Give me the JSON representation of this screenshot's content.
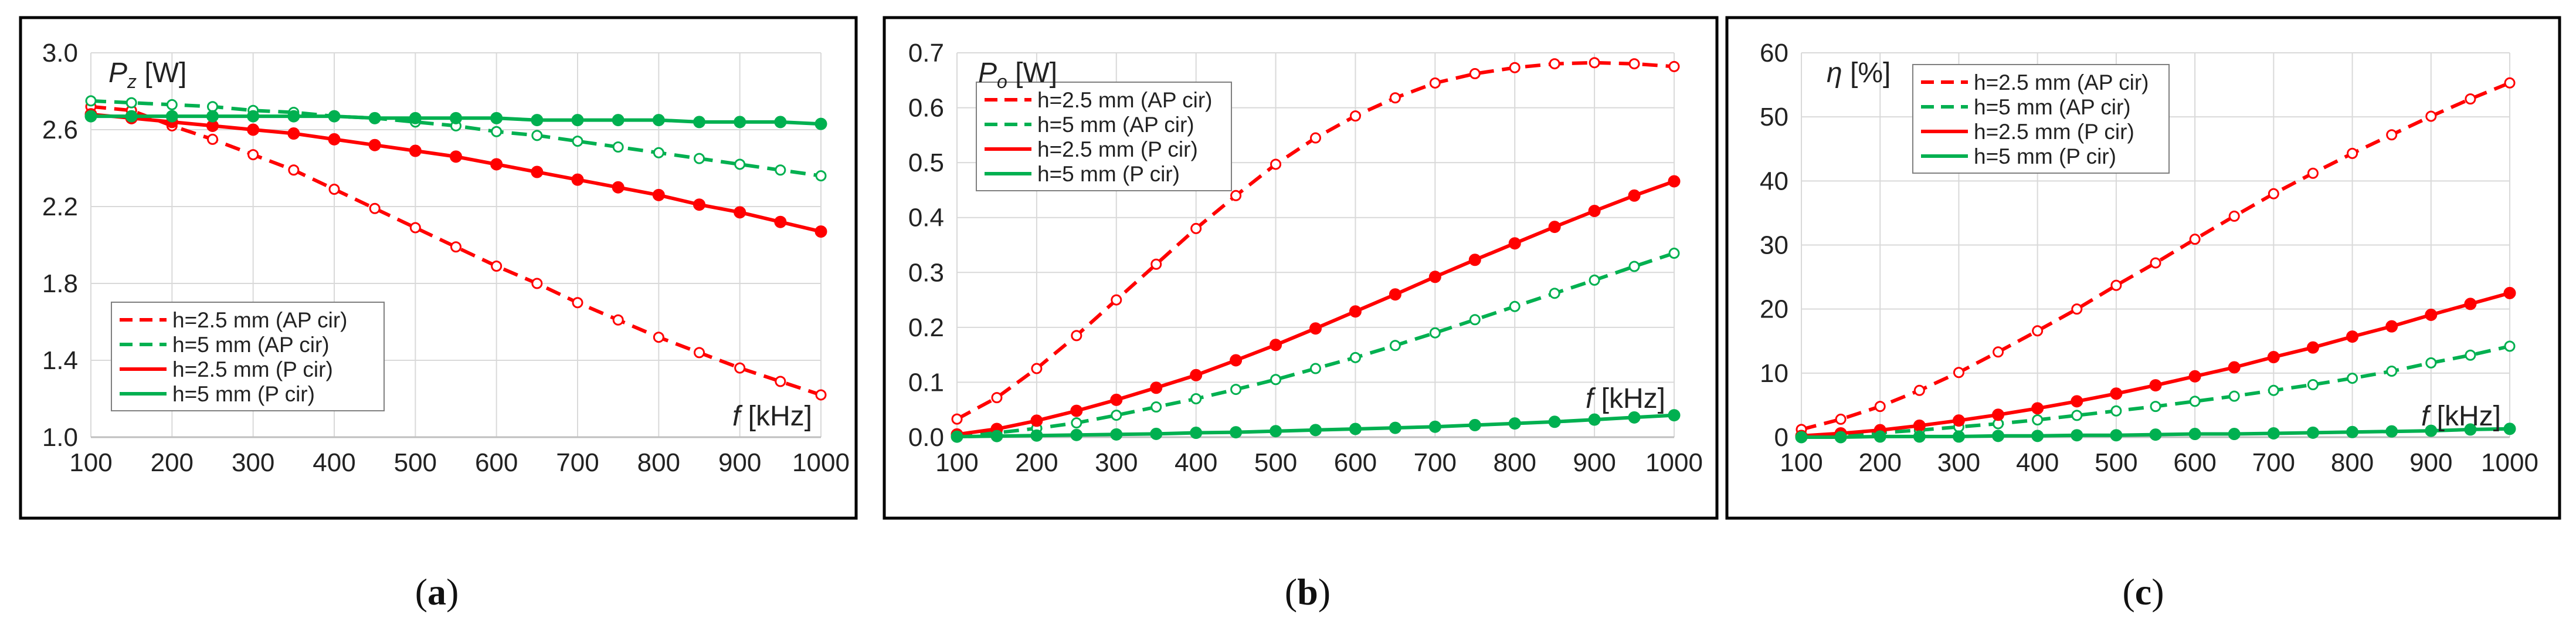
{
  "chart_data": [
    {
      "type": "line",
      "caption": "(a)",
      "ylabel_symbol": "P",
      "ylabel_sub": "z",
      "ylabel_unit": " [W]",
      "xlabel_symbol": "f",
      "xlabel_unit": " [kHz]",
      "xlim": [
        100,
        1000
      ],
      "ylim": [
        1.0,
        3.0
      ],
      "x_ticks": [
        "100",
        "200",
        "300",
        "400",
        "500",
        "600",
        "700",
        "800",
        "900",
        "1000"
      ],
      "y_ticks": [
        "1.0",
        "1.4",
        "1.8",
        "2.2",
        "2.6",
        "3.0"
      ],
      "grid": true,
      "legend_position": "bottom-left",
      "x": [
        100,
        150,
        200,
        250,
        300,
        350,
        400,
        450,
        500,
        550,
        600,
        650,
        700,
        750,
        800,
        850,
        900,
        950,
        1000
      ],
      "series": [
        {
          "name": "h=2.5 mm (AP cir)",
          "color": "#ff0000",
          "dash": "dashed",
          "marker": "open",
          "values": [
            2.72,
            2.7,
            2.62,
            2.55,
            2.47,
            2.39,
            2.29,
            2.19,
            2.09,
            1.99,
            1.89,
            1.8,
            1.7,
            1.61,
            1.52,
            1.44,
            1.36,
            1.29,
            1.22
          ]
        },
        {
          "name": "h=5 mm (AP cir)",
          "color": "#00b050",
          "dash": "dashed",
          "marker": "open",
          "values": [
            2.75,
            2.74,
            2.73,
            2.72,
            2.7,
            2.69,
            2.67,
            2.66,
            2.64,
            2.62,
            2.59,
            2.57,
            2.54,
            2.51,
            2.48,
            2.45,
            2.42,
            2.39,
            2.36
          ]
        },
        {
          "name": "h=2.5 mm (P cir)",
          "color": "#ff0000",
          "dash": "solid",
          "marker": "filled",
          "values": [
            2.68,
            2.66,
            2.64,
            2.62,
            2.6,
            2.58,
            2.55,
            2.52,
            2.49,
            2.46,
            2.42,
            2.38,
            2.34,
            2.3,
            2.26,
            2.21,
            2.17,
            2.12,
            2.07
          ]
        },
        {
          "name": "h=5 mm (P cir)",
          "color": "#00b050",
          "dash": "solid",
          "marker": "filled",
          "values": [
            2.67,
            2.67,
            2.67,
            2.67,
            2.67,
            2.67,
            2.67,
            2.66,
            2.66,
            2.66,
            2.66,
            2.65,
            2.65,
            2.65,
            2.65,
            2.64,
            2.64,
            2.64,
            2.63
          ]
        }
      ]
    },
    {
      "type": "line",
      "caption": "(b)",
      "ylabel_symbol": "P",
      "ylabel_sub": "o",
      "ylabel_unit": " [W]",
      "xlabel_symbol": "f",
      "xlabel_unit": " [kHz]",
      "xlim": [
        100,
        1000
      ],
      "ylim": [
        0.0,
        0.7
      ],
      "x_ticks": [
        "100",
        "200",
        "300",
        "400",
        "500",
        "600",
        "700",
        "800",
        "900",
        "1000"
      ],
      "y_ticks": [
        "0.0",
        "0.1",
        "0.2",
        "0.3",
        "0.4",
        "0.5",
        "0.6",
        "0.7"
      ],
      "grid": true,
      "legend_position": "top-left",
      "x": [
        100,
        150,
        200,
        250,
        300,
        350,
        400,
        450,
        500,
        550,
        600,
        650,
        700,
        750,
        800,
        850,
        900,
        950,
        1000
      ],
      "series": [
        {
          "name": "h=2.5 mm (AP cir)",
          "color": "#ff0000",
          "dash": "dashed",
          "marker": "open",
          "values": [
            0.033,
            0.072,
            0.125,
            0.185,
            0.25,
            0.315,
            0.38,
            0.44,
            0.497,
            0.545,
            0.585,
            0.618,
            0.645,
            0.662,
            0.673,
            0.68,
            0.682,
            0.68,
            0.675
          ]
        },
        {
          "name": "h=5 mm (AP cir)",
          "color": "#00b050",
          "dash": "dashed",
          "marker": "open",
          "values": [
            0.003,
            0.008,
            0.016,
            0.026,
            0.04,
            0.055,
            0.07,
            0.087,
            0.105,
            0.125,
            0.145,
            0.167,
            0.19,
            0.214,
            0.238,
            0.262,
            0.286,
            0.311,
            0.335
          ]
        },
        {
          "name": "h=2.5 mm (P cir)",
          "color": "#ff0000",
          "dash": "solid",
          "marker": "filled",
          "values": [
            0.005,
            0.015,
            0.03,
            0.048,
            0.068,
            0.09,
            0.113,
            0.14,
            0.168,
            0.198,
            0.229,
            0.26,
            0.292,
            0.323,
            0.353,
            0.383,
            0.412,
            0.44,
            0.466
          ]
        },
        {
          "name": "h=5 mm (P cir)",
          "color": "#00b050",
          "dash": "solid",
          "marker": "filled",
          "values": [
            0.001,
            0.002,
            0.003,
            0.004,
            0.005,
            0.006,
            0.008,
            0.009,
            0.011,
            0.013,
            0.015,
            0.017,
            0.019,
            0.022,
            0.025,
            0.028,
            0.032,
            0.036,
            0.04
          ]
        }
      ]
    },
    {
      "type": "line",
      "caption": "(c)",
      "ylabel_symbol": "η",
      "ylabel_sub": "",
      "ylabel_unit": " [%]",
      "xlabel_symbol": "f",
      "xlabel_unit": " [kHz]",
      "xlim": [
        100,
        1000
      ],
      "ylim": [
        0,
        60
      ],
      "x_ticks": [
        "100",
        "200",
        "300",
        "400",
        "500",
        "600",
        "700",
        "800",
        "900",
        "1000"
      ],
      "y_ticks": [
        "0",
        "10",
        "20",
        "30",
        "40",
        "50",
        "60"
      ],
      "grid": true,
      "legend_position": "top-left",
      "x": [
        100,
        150,
        200,
        250,
        300,
        350,
        400,
        450,
        500,
        550,
        600,
        650,
        700,
        750,
        800,
        850,
        900,
        950,
        1000
      ],
      "series": [
        {
          "name": "h=2.5 mm (AP cir)",
          "color": "#ff0000",
          "dash": "dashed",
          "marker": "open",
          "values": [
            1.2,
            2.8,
            4.8,
            7.3,
            10.1,
            13.3,
            16.6,
            20.0,
            23.7,
            27.2,
            30.9,
            34.5,
            38.0,
            41.2,
            44.3,
            47.2,
            50.1,
            52.8,
            55.3
          ]
        },
        {
          "name": "h=5 mm (AP cir)",
          "color": "#00b050",
          "dash": "dashed",
          "marker": "open",
          "values": [
            0.1,
            0.4,
            0.7,
            1.1,
            1.6,
            2.1,
            2.7,
            3.4,
            4.1,
            4.8,
            5.6,
            6.4,
            7.3,
            8.2,
            9.2,
            10.3,
            11.6,
            12.8,
            14.2
          ]
        },
        {
          "name": "h=2.5 mm (P cir)",
          "color": "#ff0000",
          "dash": "solid",
          "marker": "filled",
          "values": [
            0.2,
            0.6,
            1.1,
            1.8,
            2.6,
            3.5,
            4.5,
            5.6,
            6.8,
            8.1,
            9.5,
            10.9,
            12.5,
            14.0,
            15.7,
            17.3,
            19.1,
            20.8,
            22.5
          ]
        },
        {
          "name": "h=5 mm (P cir)",
          "color": "#00b050",
          "dash": "solid",
          "marker": "filled",
          "values": [
            0.0,
            0.0,
            0.1,
            0.1,
            0.1,
            0.2,
            0.2,
            0.3,
            0.3,
            0.4,
            0.5,
            0.5,
            0.6,
            0.7,
            0.8,
            0.9,
            1.0,
            1.2,
            1.3
          ]
        }
      ]
    }
  ]
}
